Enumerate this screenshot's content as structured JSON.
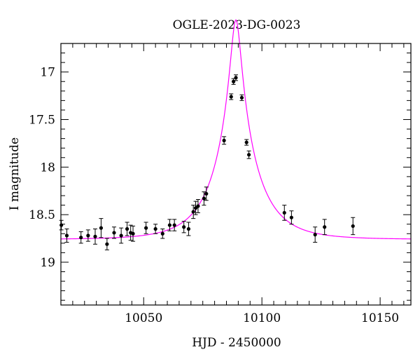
{
  "chart_data": {
    "type": "scatter",
    "title": "OGLE-2023-DG-0023",
    "xlabel": "HJD - 2450000",
    "ylabel": "I magnitude",
    "xlim": [
      10015,
      10163
    ],
    "ylim": [
      19.45,
      16.7
    ],
    "y_inverted": true,
    "grid": false,
    "x_ticks": [
      10050,
      10100,
      10150
    ],
    "y_ticks": [
      17,
      17.5,
      18,
      18.5,
      19
    ],
    "y_tick_labels": [
      "17",
      "17.5",
      "18",
      "18.5",
      "19"
    ],
    "colors": {
      "points": "#000000",
      "model": "#ff00ff"
    },
    "series": [
      {
        "kind": "points_with_errorbars",
        "points": [
          [
            10015.2,
            18.61,
            0.05
          ],
          [
            10017.5,
            18.72,
            0.07
          ],
          [
            10023.5,
            18.74,
            0.06
          ],
          [
            10026.5,
            18.72,
            0.06
          ],
          [
            10029.5,
            18.73,
            0.08
          ],
          [
            10032.0,
            18.64,
            0.1
          ],
          [
            10034.5,
            18.81,
            0.06
          ],
          [
            10037.5,
            18.69,
            0.06
          ],
          [
            10040.5,
            18.72,
            0.08
          ],
          [
            10043.0,
            18.65,
            0.07
          ],
          [
            10044.5,
            18.69,
            0.08
          ],
          [
            10045.5,
            18.7,
            0.08
          ],
          [
            10051.0,
            18.64,
            0.06
          ],
          [
            10055.0,
            18.65,
            0.05
          ],
          [
            10058.0,
            18.7,
            0.05
          ],
          [
            10061.0,
            18.61,
            0.06
          ],
          [
            10063.0,
            18.61,
            0.06
          ],
          [
            10067.0,
            18.63,
            0.06
          ],
          [
            10069.0,
            18.65,
            0.07
          ],
          [
            10071.0,
            18.47,
            0.07
          ],
          [
            10072.0,
            18.43,
            0.07
          ],
          [
            10073.0,
            18.41,
            0.07
          ],
          [
            10075.5,
            18.33,
            0.07
          ],
          [
            10076.5,
            18.28,
            0.07
          ],
          [
            10084.0,
            17.72,
            0.04
          ],
          [
            10087.0,
            17.26,
            0.03
          ],
          [
            10088.0,
            17.1,
            0.03
          ],
          [
            10089.0,
            17.06,
            0.03
          ],
          [
            10091.5,
            17.27,
            0.03
          ],
          [
            10093.5,
            17.74,
            0.03
          ],
          [
            10094.5,
            17.87,
            0.04
          ],
          [
            10109.5,
            18.48,
            0.08
          ],
          [
            10112.5,
            18.53,
            0.07
          ],
          [
            10122.5,
            18.71,
            0.08
          ],
          [
            10126.5,
            18.63,
            0.08
          ],
          [
            10138.5,
            18.62,
            0.09
          ]
        ]
      },
      {
        "kind": "model_curve",
        "model": {
          "t0": 10089.0,
          "tE": 17.0,
          "u0": 0.12,
          "baseline": 18.76
        }
      }
    ]
  }
}
